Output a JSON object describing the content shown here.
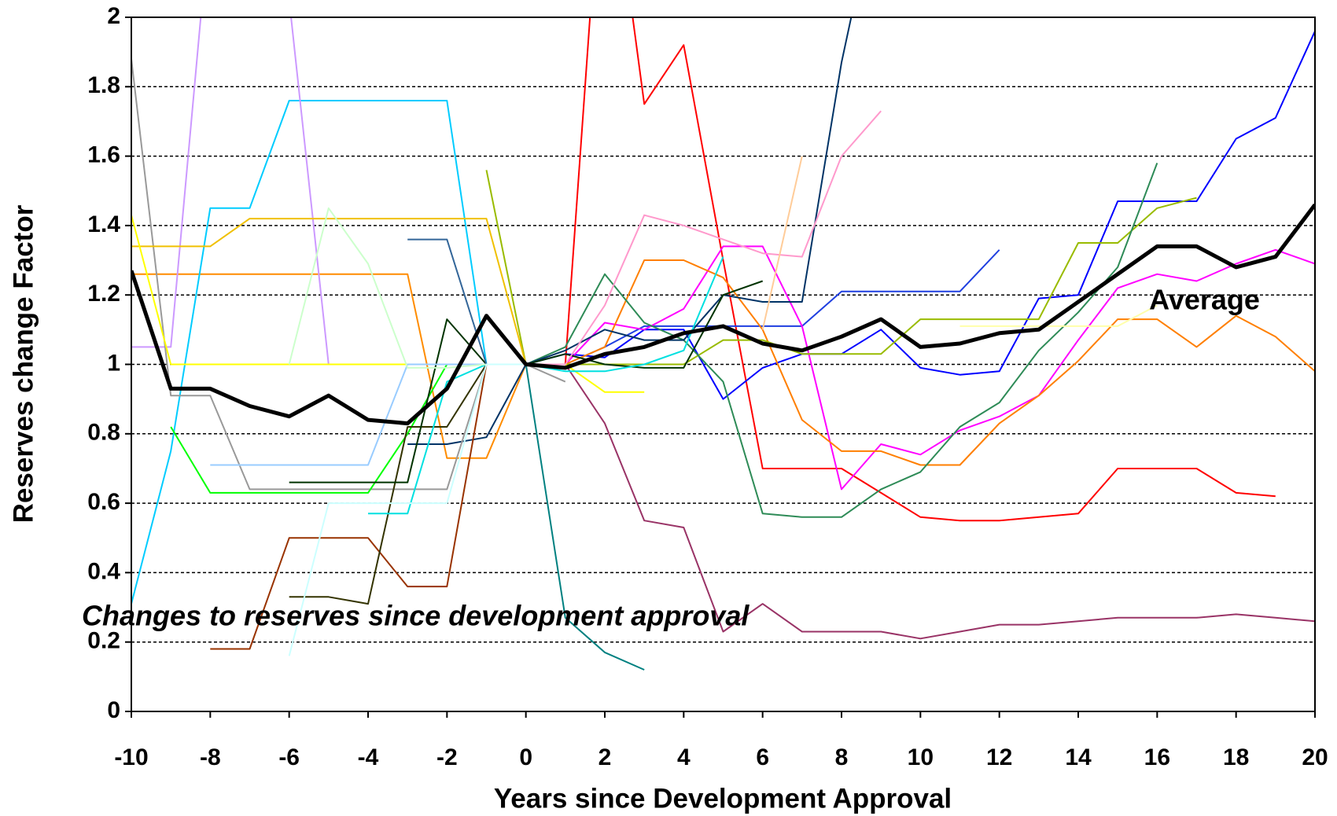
{
  "chart_data": {
    "type": "line",
    "x_label": "Years since Development Approval",
    "y_label": "Reserves change Factor",
    "annotation": "Changes to reserves since development approval",
    "x": [
      -10,
      -9,
      -8,
      -7,
      -6,
      -5,
      -4,
      -3,
      -2,
      -1,
      0,
      1,
      2,
      3,
      4,
      5,
      6,
      7,
      8,
      9,
      10,
      11,
      12,
      13,
      14,
      15,
      16,
      17,
      18,
      19,
      20
    ],
    "xlim": [
      -10,
      20
    ],
    "xticks": [
      -10,
      -8,
      -6,
      -4,
      -2,
      0,
      2,
      4,
      6,
      8,
      10,
      12,
      14,
      16,
      18,
      20
    ],
    "ylim": [
      0,
      2
    ],
    "yticks": [
      0,
      0.2,
      0.4,
      0.6,
      0.8,
      1,
      1.2,
      1.4,
      1.6,
      1.8,
      2
    ],
    "grid": true,
    "series": [
      {
        "color": "#ff0000",
        "width": 2,
        "values": [
          null,
          null,
          null,
          null,
          null,
          null,
          null,
          null,
          null,
          null,
          1,
          1.0,
          2.6,
          1.75,
          1.92,
          1.3,
          0.7,
          0.7,
          0.7,
          0.63,
          0.56,
          0.55,
          0.55,
          0.56,
          0.57,
          0.7,
          0.7,
          0.7,
          0.63,
          0.62,
          null
        ]
      },
      {
        "color": "#0000ff",
        "width": 2,
        "values": [
          null,
          null,
          null,
          null,
          null,
          null,
          null,
          null,
          null,
          null,
          1,
          1.03,
          1.02,
          1.1,
          1.1,
          0.9,
          0.99,
          1.03,
          1.03,
          1.1,
          0.99,
          0.97,
          0.98,
          1.19,
          1.2,
          1.47,
          1.47,
          1.47,
          1.65,
          1.71,
          1.96
        ]
      },
      {
        "color": "#1f3fe0",
        "width": 2,
        "values": [
          null,
          null,
          null,
          null,
          null,
          null,
          null,
          null,
          null,
          null,
          1,
          1.0,
          1.05,
          1.11,
          1.11,
          1.11,
          1.11,
          1.11,
          1.21,
          1.21,
          1.21,
          1.21,
          1.33,
          null,
          null,
          null,
          null,
          null,
          null,
          null,
          null
        ]
      },
      {
        "color": "#ff00ff",
        "width": 2,
        "values": [
          null,
          null,
          null,
          null,
          null,
          null,
          null,
          null,
          null,
          null,
          1,
          1.0,
          1.12,
          1.1,
          1.16,
          1.34,
          1.34,
          1.11,
          0.64,
          0.77,
          0.74,
          0.81,
          0.85,
          0.91,
          1.07,
          1.22,
          1.26,
          1.24,
          1.29,
          1.33,
          1.29
        ]
      },
      {
        "color": "#ff7f00",
        "width": 2,
        "values": [
          null,
          null,
          null,
          null,
          null,
          null,
          null,
          null,
          null,
          null,
          1,
          1.0,
          1.05,
          1.3,
          1.3,
          1.25,
          1.1,
          0.84,
          0.75,
          0.75,
          0.71,
          0.71,
          0.83,
          0.91,
          1.01,
          1.13,
          1.13,
          1.05,
          1.14,
          1.08,
          0.98
        ]
      },
      {
        "color": "#ff8c00",
        "width": 2,
        "values": [
          1.26,
          1.26,
          1.26,
          1.26,
          1.26,
          1.26,
          1.26,
          1.26,
          0.73,
          0.73,
          1,
          null,
          null,
          null,
          null,
          null,
          null,
          null,
          null,
          null,
          null,
          null,
          null,
          null,
          null,
          null,
          null,
          null,
          null,
          null,
          null
        ]
      },
      {
        "color": "#99bb00",
        "width": 2,
        "values": [
          null,
          null,
          null,
          null,
          null,
          null,
          null,
          null,
          null,
          1.56,
          1,
          1.0,
          1.0,
          1.0,
          1.0,
          1.07,
          1.07,
          1.03,
          1.03,
          1.03,
          1.13,
          1.13,
          1.13,
          1.13,
          1.35,
          1.35,
          1.45,
          1.48,
          null,
          null,
          null
        ]
      },
      {
        "color": "#2e8b57",
        "width": 2,
        "values": [
          null,
          null,
          null,
          null,
          null,
          null,
          null,
          null,
          null,
          null,
          1,
          1.05,
          1.26,
          1.12,
          1.07,
          0.95,
          0.57,
          0.56,
          0.56,
          0.64,
          0.69,
          0.82,
          0.89,
          1.04,
          1.15,
          1.28,
          1.58,
          null,
          null,
          null,
          null
        ]
      },
      {
        "color": "#993366",
        "width": 2,
        "values": [
          null,
          null,
          null,
          null,
          null,
          null,
          null,
          null,
          null,
          null,
          1,
          1.0,
          0.83,
          0.55,
          0.53,
          0.23,
          0.31,
          0.23,
          0.23,
          0.23,
          0.21,
          0.23,
          0.25,
          0.25,
          0.26,
          0.27,
          0.27,
          0.27,
          0.28,
          0.27,
          0.26
        ]
      },
      {
        "color": "#003366",
        "width": 2,
        "values": [
          null,
          null,
          null,
          null,
          null,
          null,
          null,
          0.77,
          0.77,
          0.79,
          1,
          1.04,
          1.1,
          1.07,
          1.07,
          1.2,
          1.18,
          1.18,
          1.87,
          2.4,
          null,
          null,
          null,
          null,
          null,
          null,
          null,
          null,
          null,
          null,
          null
        ]
      },
      {
        "color": "#008080",
        "width": 2,
        "values": [
          null,
          null,
          null,
          null,
          null,
          null,
          null,
          null,
          null,
          null,
          1,
          0.27,
          0.17,
          0.12,
          null,
          null,
          null,
          null,
          null,
          null,
          null,
          null,
          null,
          null,
          null,
          null,
          null,
          null,
          null,
          null,
          null
        ]
      },
      {
        "color": "#00ccff",
        "width": 2,
        "values": [
          0.31,
          0.75,
          1.45,
          1.45,
          1.76,
          1.76,
          1.76,
          1.76,
          1.76,
          1.0,
          1,
          null,
          null,
          null,
          null,
          null,
          null,
          null,
          null,
          null,
          null,
          null,
          null,
          null,
          null,
          null,
          null,
          null,
          null,
          null,
          null
        ]
      },
      {
        "color": "#cc99ff",
        "width": 2,
        "values": [
          1.05,
          1.05,
          2.3,
          2.3,
          2.05,
          1.0,
          1.0,
          1.0,
          1.0,
          1.0,
          1,
          null,
          null,
          null,
          null,
          null,
          null,
          null,
          null,
          null,
          null,
          null,
          null,
          null,
          null,
          null,
          null,
          null,
          null,
          null,
          null
        ]
      },
      {
        "color": "#999999",
        "width": 2,
        "values": [
          1.88,
          0.91,
          0.91,
          0.64,
          0.64,
          0.64,
          0.64,
          0.64,
          0.64,
          1.0,
          1,
          0.95,
          null,
          null,
          null,
          null,
          null,
          null,
          null,
          null,
          null,
          null,
          null,
          null,
          null,
          null,
          null,
          null,
          null,
          null,
          null
        ]
      },
      {
        "color": "#f0c000",
        "width": 2,
        "values": [
          1.34,
          1.34,
          1.34,
          1.42,
          1.42,
          1.42,
          1.42,
          1.42,
          1.42,
          1.42,
          1,
          null,
          null,
          null,
          null,
          null,
          null,
          null,
          null,
          null,
          null,
          null,
          null,
          null,
          null,
          null,
          null,
          null,
          null,
          null,
          null
        ]
      },
      {
        "color": "#ffff00",
        "width": 2,
        "values": [
          1.43,
          1.0,
          1.0,
          1.0,
          1.0,
          1.0,
          1.0,
          1.0,
          1.0,
          1.0,
          1,
          1.0,
          0.92,
          0.92,
          null,
          null,
          null,
          null,
          null,
          null,
          null,
          null,
          null,
          null,
          null,
          null,
          null,
          null,
          null,
          null,
          null
        ]
      },
      {
        "color": "#00ff00",
        "width": 2,
        "values": [
          null,
          0.82,
          0.63,
          0.63,
          0.63,
          0.63,
          0.63,
          0.8,
          1.0,
          1.0,
          1,
          null,
          null,
          null,
          null,
          null,
          null,
          null,
          null,
          null,
          null,
          null,
          null,
          null,
          null,
          null,
          null,
          null,
          null,
          null,
          null
        ]
      },
      {
        "color": "#993300",
        "width": 2,
        "values": [
          null,
          null,
          0.18,
          0.18,
          0.5,
          0.5,
          0.5,
          0.36,
          0.36,
          1.0,
          1,
          null,
          null,
          null,
          null,
          null,
          null,
          null,
          null,
          null,
          null,
          null,
          null,
          null,
          null,
          null,
          null,
          null,
          null,
          null,
          null
        ]
      },
      {
        "color": "#333300",
        "width": 2,
        "values": [
          null,
          null,
          null,
          null,
          0.33,
          0.33,
          0.31,
          0.82,
          0.82,
          1.0,
          1,
          null,
          null,
          null,
          null,
          null,
          null,
          null,
          null,
          null,
          null,
          null,
          null,
          null,
          null,
          null,
          null,
          null,
          null,
          null,
          null
        ]
      },
      {
        "color": "#003300",
        "width": 2,
        "values": [
          null,
          null,
          null,
          null,
          0.66,
          0.66,
          0.66,
          0.66,
          1.13,
          1.0,
          1,
          1.03,
          1.0,
          0.99,
          0.99,
          1.2,
          1.24,
          null,
          null,
          null,
          null,
          null,
          null,
          null,
          null,
          null,
          null,
          null,
          null,
          null,
          null
        ]
      },
      {
        "color": "#99ccff",
        "width": 2,
        "values": [
          null,
          null,
          0.71,
          0.71,
          0.71,
          0.71,
          0.71,
          1.0,
          1.0,
          1.0,
          1,
          null,
          null,
          null,
          null,
          null,
          null,
          null,
          null,
          null,
          null,
          null,
          null,
          null,
          null,
          null,
          null,
          null,
          null,
          null,
          null
        ]
      },
      {
        "color": "#ff99cc",
        "width": 2,
        "values": [
          null,
          null,
          null,
          null,
          null,
          null,
          null,
          null,
          null,
          null,
          1,
          1.0,
          1.17,
          1.43,
          1.4,
          1.36,
          1.32,
          1.31,
          1.6,
          1.73,
          null,
          null,
          null,
          null,
          null,
          null,
          null,
          null,
          null,
          null,
          null
        ]
      },
      {
        "color": "#00e0e0",
        "width": 2,
        "values": [
          null,
          null,
          null,
          null,
          null,
          null,
          0.57,
          0.57,
          0.95,
          1.0,
          1,
          0.98,
          0.98,
          1.0,
          1.04,
          1.31,
          null,
          null,
          null,
          null,
          null,
          null,
          null,
          null,
          null,
          null,
          null,
          null,
          null,
          null,
          null
        ]
      },
      {
        "color": "#ccffcc",
        "width": 2,
        "values": [
          null,
          null,
          null,
          null,
          1.0,
          1.45,
          1.29,
          0.99,
          0.99,
          1.0,
          1,
          null,
          null,
          null,
          null,
          null,
          null,
          null,
          null,
          null,
          null,
          null,
          null,
          null,
          null,
          null,
          null,
          null,
          null,
          null,
          null
        ]
      },
      {
        "color": "#336699",
        "width": 2,
        "values": [
          null,
          null,
          null,
          null,
          null,
          null,
          null,
          1.36,
          1.36,
          1.0,
          1,
          null,
          null,
          null,
          null,
          null,
          null,
          null,
          null,
          null,
          null,
          null,
          null,
          null,
          null,
          null,
          null,
          null,
          null,
          null,
          null
        ]
      },
      {
        "color": "#ccffff",
        "width": 2,
        "values": [
          null,
          null,
          null,
          null,
          0.16,
          0.6,
          0.6,
          0.6,
          0.6,
          1.0,
          1,
          null,
          null,
          null,
          null,
          null,
          null,
          null,
          null,
          null,
          null,
          null,
          null,
          null,
          null,
          null,
          null,
          null,
          null,
          null,
          null
        ]
      },
      {
        "color": "#ffcc99",
        "width": 2,
        "values": [
          null,
          null,
          null,
          null,
          null,
          null,
          null,
          null,
          null,
          null,
          null,
          null,
          null,
          null,
          null,
          null,
          1.1,
          1.6,
          null,
          null,
          null,
          null,
          null,
          null,
          null,
          null,
          null,
          null,
          null,
          null,
          null
        ]
      },
      {
        "color": "#ffffaa",
        "width": 2,
        "values": [
          null,
          null,
          null,
          null,
          null,
          null,
          null,
          null,
          null,
          null,
          null,
          null,
          null,
          null,
          null,
          null,
          null,
          null,
          null,
          null,
          null,
          1.11,
          1.11,
          1.11,
          1.11,
          1.11,
          1.17,
          null,
          null,
          null,
          null
        ]
      },
      {
        "name": "Average",
        "color": "#000000",
        "width": 5,
        "values": [
          1.27,
          0.93,
          0.93,
          0.88,
          0.85,
          0.91,
          0.84,
          0.83,
          0.93,
          1.14,
          1.0,
          0.99,
          1.03,
          1.05,
          1.09,
          1.11,
          1.06,
          1.04,
          1.08,
          1.13,
          1.05,
          1.06,
          1.09,
          1.1,
          1.18,
          1.26,
          1.34,
          1.34,
          1.28,
          1.31,
          1.46
        ]
      }
    ]
  }
}
